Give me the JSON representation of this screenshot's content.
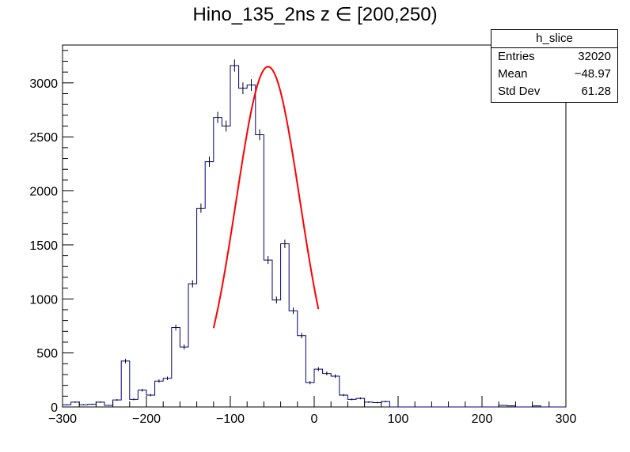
{
  "title": "Hino_135_2ns z  ∈ [200,250)",
  "stats_box": {
    "name": "h_slice",
    "rows": [
      {
        "label": "Entries",
        "value": "32020"
      },
      {
        "label": "Mean",
        "value": "−48.97"
      },
      {
        "label": "Std Dev",
        "value": "61.28"
      }
    ]
  },
  "colors": {
    "histogram": "#000080",
    "fit": "#ff0000",
    "axis": "#000000"
  },
  "chart_data": {
    "type": "histogram",
    "title": "Hino_135_2ns z  ∈ [200,250)",
    "xlabel": "",
    "ylabel": "",
    "xlim": [
      -300,
      300
    ],
    "ylim": [
      0,
      3350
    ],
    "x_ticks": [
      -300,
      -200,
      -100,
      0,
      100,
      200,
      300
    ],
    "x_tick_labels": [
      "−300",
      "−200",
      "−100",
      "0",
      "100",
      "200",
      "300"
    ],
    "y_ticks": [
      0,
      500,
      1000,
      1500,
      2000,
      2500,
      3000
    ],
    "y_tick_labels": [
      "0",
      "500",
      "1000",
      "1500",
      "2000",
      "2500",
      "3000"
    ],
    "bin_width": 10,
    "bin_edges_start": -300,
    "bin_values": [
      20,
      45,
      20,
      25,
      45,
      15,
      65,
      425,
      70,
      155,
      110,
      240,
      265,
      735,
      555,
      1140,
      1840,
      2270,
      2680,
      2600,
      3160,
      2950,
      2980,
      2520,
      1360,
      990,
      1510,
      890,
      660,
      225,
      350,
      310,
      285,
      110,
      70,
      80,
      45,
      40,
      50,
      0,
      0,
      0,
      0,
      0,
      0,
      0,
      0,
      0,
      0,
      0,
      0,
      0,
      15,
      10,
      0,
      0,
      10,
      0,
      0,
      0
    ],
    "grid": false,
    "fit": {
      "type": "gaussian",
      "amplitude": 3150,
      "mean": -55,
      "sigma": 38,
      "range": [
        -120,
        5
      ]
    }
  }
}
